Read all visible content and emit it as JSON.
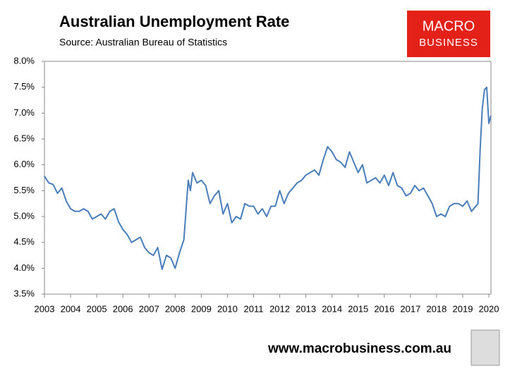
{
  "chart_data": {
    "type": "line",
    "title": "Australian Unemployment Rate",
    "subtitle": "Source: Australian Bureau of Statistics",
    "logo": [
      "MACRO",
      "BUSINESS"
    ],
    "website": "www.macrobusiness.com.au",
    "x": [
      2003,
      2003.167,
      2003.333,
      2003.5,
      2003.667,
      2003.833,
      2004,
      2004.167,
      2004.333,
      2004.5,
      2004.667,
      2004.833,
      2005,
      2005.167,
      2005.333,
      2005.5,
      2005.667,
      2005.833,
      2006,
      2006.167,
      2006.333,
      2006.5,
      2006.667,
      2006.833,
      2007,
      2007.167,
      2007.333,
      2007.5,
      2007.667,
      2007.833,
      2008,
      2008.167,
      2008.333,
      2008.5,
      2008.583,
      2008.667,
      2008.833,
      2009,
      2009.167,
      2009.333,
      2009.5,
      2009.667,
      2009.833,
      2010,
      2010.167,
      2010.333,
      2010.5,
      2010.667,
      2010.833,
      2011,
      2011.167,
      2011.333,
      2011.5,
      2011.667,
      2011.833,
      2012,
      2012.167,
      2012.333,
      2012.5,
      2012.667,
      2012.833,
      2013,
      2013.167,
      2013.333,
      2013.5,
      2013.667,
      2013.833,
      2014,
      2014.167,
      2014.333,
      2014.5,
      2014.667,
      2014.833,
      2015,
      2015.167,
      2015.333,
      2015.5,
      2015.667,
      2015.833,
      2016,
      2016.167,
      2016.333,
      2016.5,
      2016.667,
      2016.833,
      2017,
      2017.167,
      2017.333,
      2017.5,
      2017.667,
      2017.833,
      2018,
      2018.167,
      2018.333,
      2018.5,
      2018.667,
      2018.833,
      2019,
      2019.167,
      2019.333,
      2019.5,
      2019.583,
      2019.667,
      2019.75,
      2019.833,
      2019.917,
      2020,
      2020.08
    ],
    "series": [
      {
        "name": "Unemployment rate",
        "color": "#4a7ebb",
        "values": [
          5.78,
          5.65,
          5.62,
          5.45,
          5.55,
          5.3,
          5.15,
          5.1,
          5.1,
          5.15,
          5.1,
          4.95,
          5.0,
          5.05,
          4.95,
          5.1,
          5.15,
          4.9,
          4.75,
          4.65,
          4.5,
          4.55,
          4.6,
          4.4,
          4.3,
          4.25,
          4.4,
          3.98,
          4.25,
          4.2,
          4.0,
          4.3,
          4.55,
          5.7,
          5.5,
          5.85,
          5.65,
          5.7,
          5.6,
          5.25,
          5.4,
          5.5,
          5.05,
          5.25,
          4.88,
          5.0,
          4.95,
          5.25,
          5.2,
          5.2,
          5.05,
          5.15,
          5.0,
          5.2,
          5.2,
          5.5,
          5.25,
          5.45,
          5.55,
          5.65,
          5.7,
          5.8,
          5.85,
          5.9,
          5.8,
          6.1,
          6.35,
          6.25,
          6.1,
          6.05,
          5.95,
          6.25,
          6.05,
          5.85,
          6.0,
          5.65,
          5.7,
          5.75,
          5.65,
          5.8,
          5.6,
          5.85,
          5.6,
          5.55,
          5.4,
          5.45,
          5.6,
          5.5,
          5.55,
          5.4,
          5.25,
          5.0,
          5.05,
          5.0,
          5.2,
          5.25,
          5.25,
          5.2,
          5.3,
          5.1,
          5.2,
          5.25,
          6.3,
          7.1,
          7.45,
          7.5,
          6.8,
          6.95
        ]
      }
    ],
    "xlim": [
      2003,
      2020.08
    ],
    "xticks": [
      2003,
      2004,
      2005,
      2006,
      2007,
      2008,
      2009,
      2010,
      2011,
      2012,
      2013,
      2014,
      2015,
      2016,
      2017,
      2018,
      2019,
      2020
    ],
    "ylim": [
      3.5,
      8.0
    ],
    "yticks": [
      {
        "value": 3.5,
        "label": "3.5%"
      },
      {
        "value": 4.0,
        "label": "4.0%"
      },
      {
        "value": 4.5,
        "label": "4.5%"
      },
      {
        "value": 5.0,
        "label": "5.0%"
      },
      {
        "value": 5.5,
        "label": "5.5%"
      },
      {
        "value": 6.0,
        "label": "6.0%"
      },
      {
        "value": 6.5,
        "label": "6.5%"
      },
      {
        "value": 7.0,
        "label": "7.0%"
      },
      {
        "value": 7.5,
        "label": "7.5%"
      },
      {
        "value": 8.0,
        "label": "8.0%"
      }
    ],
    "grid": false
  }
}
